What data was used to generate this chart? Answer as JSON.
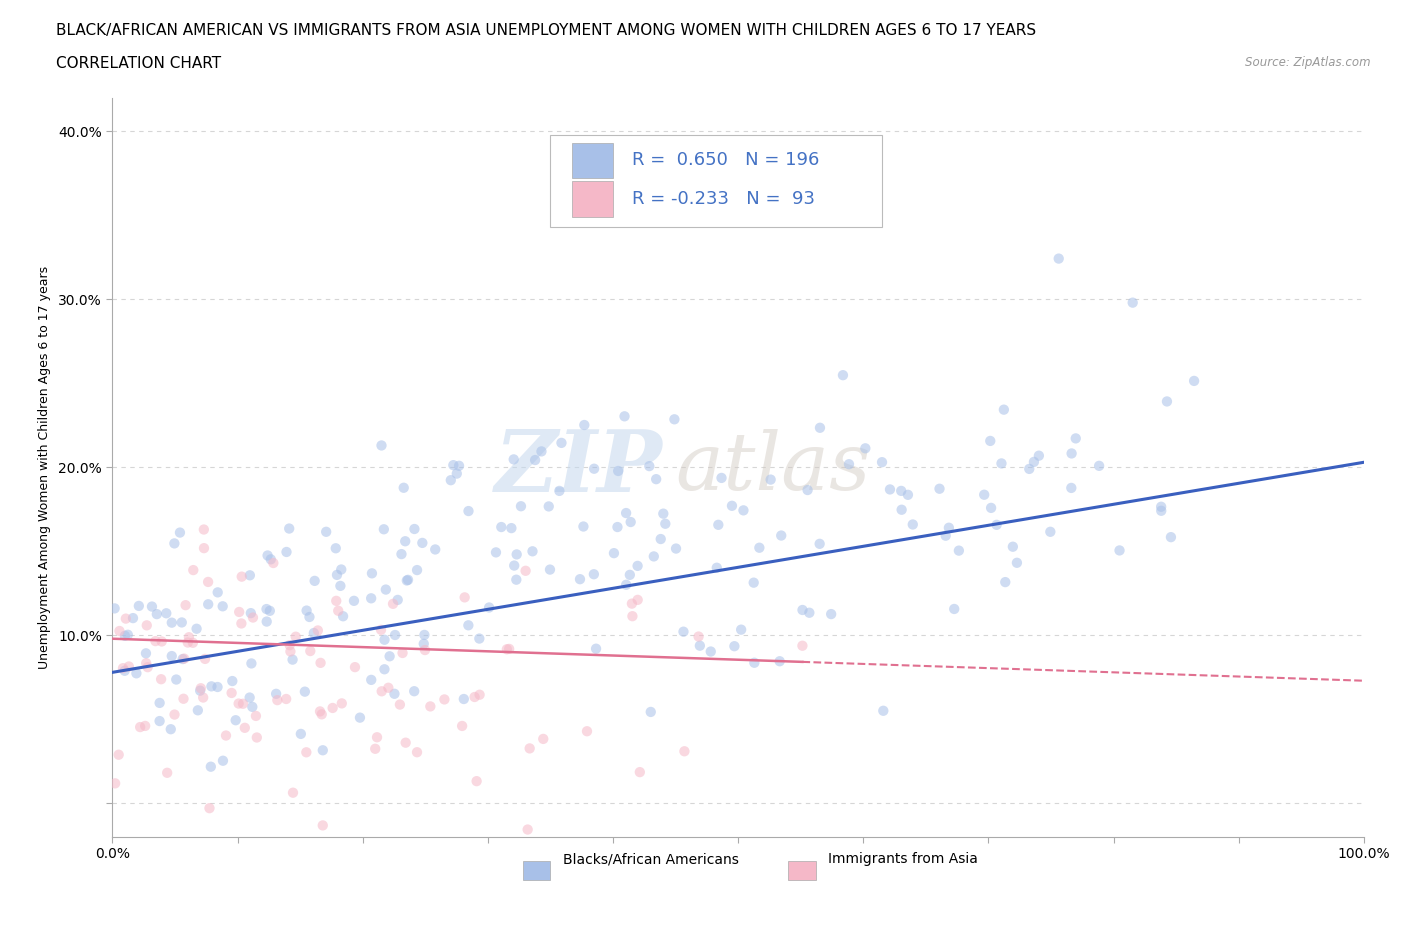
{
  "title_line1": "BLACK/AFRICAN AMERICAN VS IMMIGRANTS FROM ASIA UNEMPLOYMENT AMONG WOMEN WITH CHILDREN AGES 6 TO 17 YEARS",
  "title_line2": "CORRELATION CHART",
  "source_text": "Source: ZipAtlas.com",
  "watermark_zip": "ZIP",
  "watermark_atlas": "atlas",
  "ylabel": "Unemployment Among Women with Children Ages 6 to 17 years",
  "xlim": [
    0.0,
    1.0
  ],
  "ylim": [
    -0.02,
    0.42
  ],
  "xticks": [
    0.0,
    0.1,
    0.2,
    0.3,
    0.4,
    0.5,
    0.6,
    0.7,
    0.8,
    0.9,
    1.0
  ],
  "xtick_labels": [
    "0.0%",
    "",
    "",
    "",
    "",
    "",
    "",
    "",
    "",
    "",
    "100.0%"
  ],
  "yticks": [
    0.0,
    0.1,
    0.2,
    0.3,
    0.4
  ],
  "ytick_labels": [
    "",
    "10.0%",
    "20.0%",
    "30.0%",
    "40.0%"
  ],
  "blue_color": "#A8C0E8",
  "pink_color": "#F5B8C8",
  "blue_line_color": "#3A5FBF",
  "pink_line_color": "#E07090",
  "legend_text_color": "#4472C4",
  "background_color": "#FFFFFF",
  "grid_color": "#CCCCCC",
  "R_blue": 0.65,
  "N_blue": 196,
  "R_pink": -0.233,
  "N_pink": 93,
  "title_fontsize": 11,
  "subtitle_fontsize": 11,
  "axis_label_fontsize": 9,
  "tick_fontsize": 10,
  "legend_fontsize": 13,
  "blue_scatter_alpha": 0.55,
  "pink_scatter_alpha": 0.55,
  "blue_marker_size": 55,
  "pink_marker_size": 55
}
